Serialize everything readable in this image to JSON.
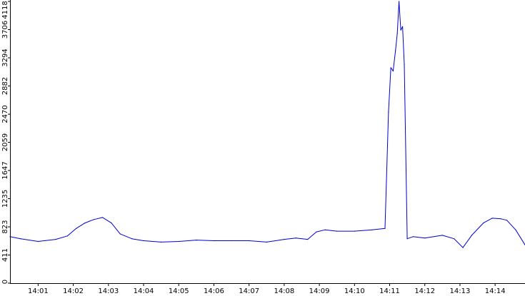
{
  "chart_data": {
    "type": "line",
    "title": "",
    "xlabel": "",
    "ylabel": "",
    "ylim": [
      0,
      4118
    ],
    "yticks": [
      0,
      411,
      823,
      1235,
      1647,
      2059,
      2470,
      2882,
      3294,
      3706,
      4118
    ],
    "xticks": [
      "14:01",
      "14:02",
      "14:03",
      "14:04",
      "14:05",
      "14:06",
      "14:07",
      "14:08",
      "14:09",
      "14:10",
      "14:11",
      "14:12",
      "14:13",
      "14:14"
    ],
    "xlim": [
      "14:00:12",
      "14:14:51"
    ],
    "grid": false,
    "legend": "none",
    "series": [
      {
        "color": "#0000cc",
        "x": [
          "14:00:12",
          "14:00:30",
          "14:01:00",
          "14:01:30",
          "14:01:50",
          "14:02:05",
          "14:02:20",
          "14:02:35",
          "14:02:50",
          "14:03:05",
          "14:03:20",
          "14:03:40",
          "14:04:00",
          "14:04:30",
          "14:05:00",
          "14:05:30",
          "14:06:00",
          "14:06:30",
          "14:07:00",
          "14:07:30",
          "14:08:00",
          "14:08:20",
          "14:08:40",
          "14:08:55",
          "14:09:10",
          "14:09:30",
          "14:10:00",
          "14:10:30",
          "14:10:52",
          "14:10:58",
          "14:11:02",
          "14:11:06",
          "14:11:10",
          "14:11:13",
          "14:11:16",
          "14:11:19",
          "14:11:22",
          "14:11:25",
          "14:11:30",
          "14:11:40",
          "14:12:00",
          "14:12:30",
          "14:12:50",
          "14:13:05",
          "14:13:20",
          "14:13:40",
          "14:13:55",
          "14:14:10",
          "14:14:20",
          "14:14:35",
          "14:14:51"
        ],
        "values": [
          680,
          650,
          610,
          640,
          690,
          800,
          880,
          930,
          960,
          880,
          720,
          650,
          620,
          600,
          610,
          630,
          620,
          620,
          620,
          600,
          640,
          660,
          640,
          750,
          780,
          760,
          760,
          780,
          800,
          2500,
          3150,
          3100,
          3400,
          3650,
          4118,
          3700,
          3750,
          3200,
          650,
          680,
          660,
          700,
          650,
          520,
          700,
          880,
          950,
          940,
          920,
          780,
          560
        ]
      }
    ]
  }
}
